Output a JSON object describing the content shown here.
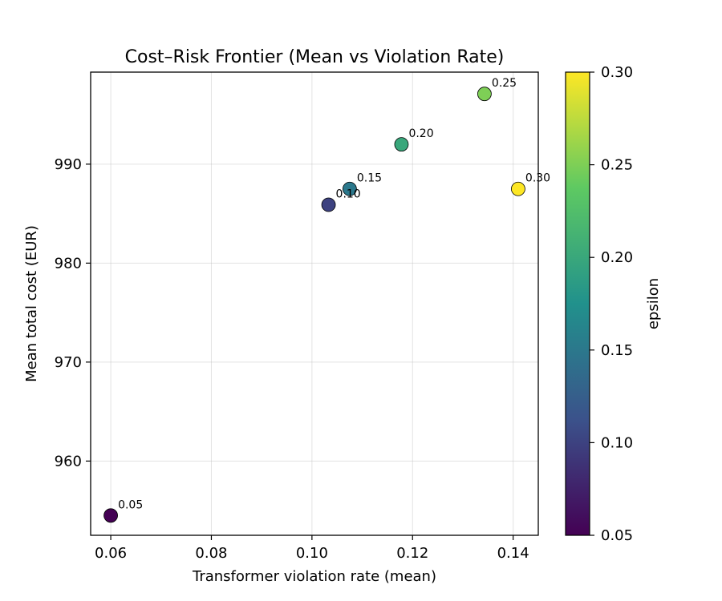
{
  "chart_data": {
    "type": "scatter",
    "title": "Cost–Risk Frontier (Mean vs Violation Rate)",
    "xlabel": "Transformer violation rate (mean)",
    "ylabel": "Mean total cost (EUR)",
    "xlim": [
      0.056,
      0.145
    ],
    "ylim": [
      952.5,
      999.3
    ],
    "xticks": [
      0.06,
      0.08,
      0.1,
      0.12,
      0.14
    ],
    "xtick_labels": [
      "0.06",
      "0.08",
      "0.10",
      "0.12",
      "0.14"
    ],
    "yticks": [
      960,
      970,
      980,
      990
    ],
    "ytick_labels": [
      "960",
      "970",
      "980",
      "990"
    ],
    "grid": true,
    "points": [
      {
        "x": 0.06,
        "y": 954.5,
        "epsilon": 0.05,
        "label": "0.05"
      },
      {
        "x": 0.1033,
        "y": 985.9,
        "epsilon": 0.1,
        "label": "0.10"
      },
      {
        "x": 0.1075,
        "y": 987.5,
        "epsilon": 0.15,
        "label": "0.15"
      },
      {
        "x": 0.1178,
        "y": 992.0,
        "epsilon": 0.2,
        "label": "0.20"
      },
      {
        "x": 0.1343,
        "y": 997.1,
        "epsilon": 0.25,
        "label": "0.25"
      },
      {
        "x": 0.141,
        "y": 987.5,
        "epsilon": 0.3,
        "label": "0.30"
      }
    ],
    "colorbar": {
      "label": "epsilon",
      "colormap": "viridis",
      "range": [
        0.05,
        0.3
      ],
      "ticks": [
        0.05,
        0.1,
        0.15,
        0.2,
        0.25,
        0.3
      ],
      "tick_labels": [
        "0.05",
        "0.10",
        "0.15",
        "0.20",
        "0.25",
        "0.30"
      ],
      "colors": [
        "#440154",
        "#3b528b",
        "#21918c",
        "#5ec962",
        "#fde725"
      ]
    }
  }
}
